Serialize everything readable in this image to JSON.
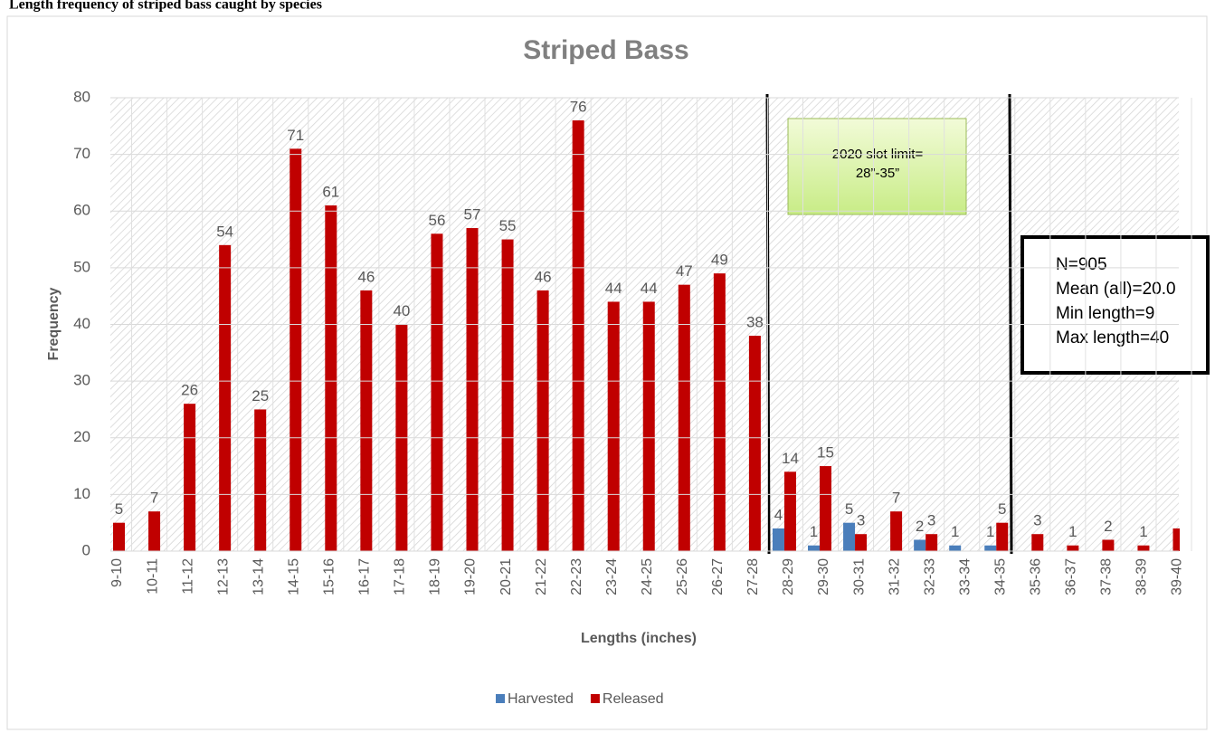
{
  "heading": "Length frequency of striped bass caught by species",
  "chart_data": {
    "type": "bar",
    "title": "Striped Bass",
    "x_label": "Lengths (inches)",
    "y_label": "Frequency",
    "categories": [
      "9-10",
      "10-11",
      "11-12",
      "12-13",
      "13-14",
      "14-15",
      "15-16",
      "16-17",
      "17-18",
      "18-19",
      "19-20",
      "20-21",
      "21-22",
      "22-23",
      "23-24",
      "24-25",
      "25-26",
      "26-27",
      "27-28",
      "28-29",
      "29-30",
      "30-31",
      "31-32",
      "32-33",
      "33-34",
      "34-35",
      "35-36",
      "36-37",
      "37-38",
      "38-39",
      "39-40"
    ],
    "series": [
      {
        "name": "Harvested",
        "color": "#4a7ebb",
        "values": [
          null,
          null,
          null,
          null,
          null,
          null,
          null,
          null,
          null,
          null,
          null,
          null,
          null,
          null,
          null,
          null,
          null,
          null,
          null,
          4,
          1,
          5,
          null,
          2,
          1,
          1,
          null,
          null,
          null,
          null,
          null
        ]
      },
      {
        "name": "Released",
        "color": "#c00000",
        "values": [
          5,
          7,
          26,
          54,
          25,
          71,
          61,
          46,
          40,
          56,
          57,
          55,
          46,
          76,
          44,
          44,
          47,
          49,
          38,
          14,
          15,
          3,
          7,
          3,
          null,
          5,
          3,
          1,
          2,
          1,
          4
        ],
        "value_labels": [
          "5",
          "7",
          "26",
          "54",
          "25",
          "71",
          "61",
          "46",
          "40",
          "56",
          "57",
          "55",
          "46",
          "76",
          "44",
          "44",
          "47",
          "49",
          "38",
          "14",
          "15",
          "3",
          "7",
          "3",
          null,
          "5",
          "3",
          "1",
          "2",
          "1",
          null
        ]
      }
    ],
    "ylim": [
      0,
      80
    ],
    "yticks": [
      0,
      10,
      20,
      30,
      40,
      50,
      60,
      70,
      80
    ],
    "grid": true,
    "legend": "bottom",
    "annotations": {
      "slot_limit": [
        "2020 slot limit=",
        "28”-35”"
      ],
      "stats": [
        "N=905",
        "Mean (all)=20.0",
        "Min length=9",
        "Max length=40"
      ]
    }
  }
}
